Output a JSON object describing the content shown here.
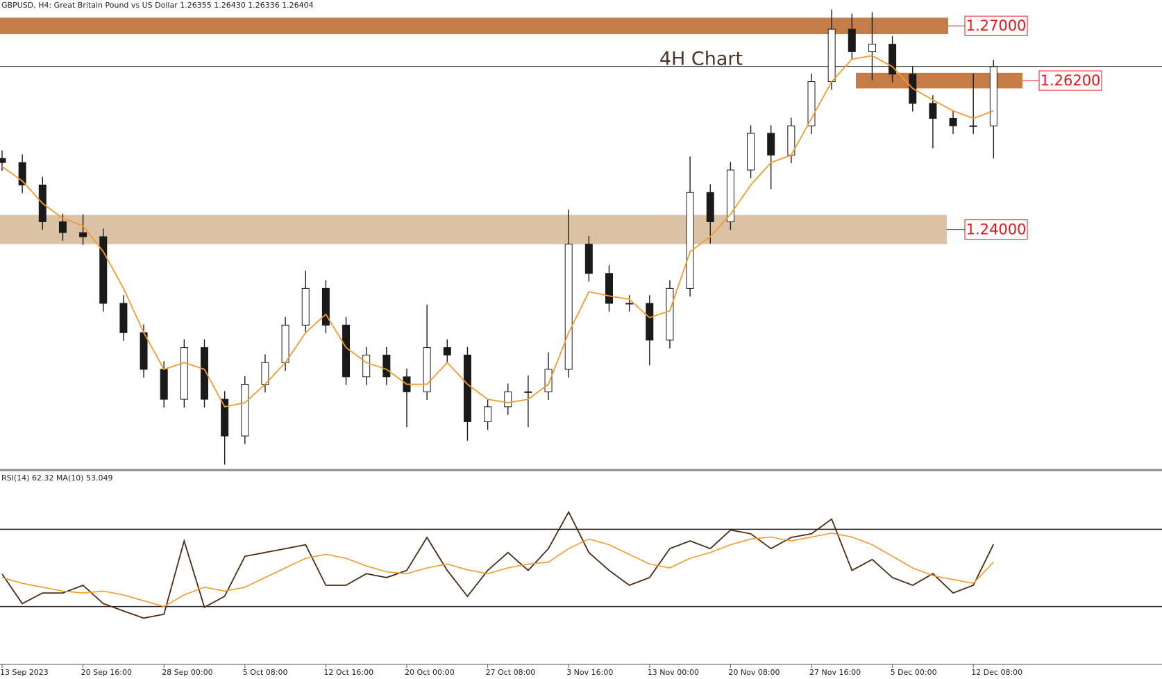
{
  "chart_data": [
    {
      "type": "candlestick",
      "header": "GBPUSD, H4:  Great Britain Pound vs US Dollar  1.26355 1.26430 1.26336 1.26404",
      "title": "4H Chart",
      "categories": [
        "13 Sep 2023",
        null,
        null,
        null,
        "20 Sep 16:00",
        null,
        null,
        null,
        "28 Sep 00:00",
        null,
        null,
        null,
        "5 Oct 08:00",
        null,
        null,
        null,
        "12 Oct 16:00",
        null,
        null,
        null,
        "20 Oct 00:00",
        null,
        null,
        null,
        "27 Oct 08:00",
        null,
        null,
        null,
        "3 Nov 16:00",
        null,
        null,
        null,
        "13 Nov 00:00",
        null,
        null,
        null,
        "20 Nov 08:00",
        null,
        null,
        null,
        "27 Nov 16:00",
        null,
        null,
        null,
        "5 Dec 00:00",
        null,
        null,
        null,
        "12 Dec 08:00",
        null
      ],
      "open": [
        1.2505,
        1.2499,
        1.2466,
        1.2412,
        1.2396,
        1.239,
        1.2292,
        1.2249,
        1.2195,
        1.2151,
        1.2227,
        1.2151,
        1.2097,
        1.2173,
        1.2205,
        1.226,
        1.2314,
        1.226,
        1.2184,
        1.2216,
        1.2184,
        1.2162,
        1.2227,
        1.2216,
        1.2118,
        1.214,
        1.2162,
        1.2162,
        1.2195,
        1.2379,
        1.2336,
        1.2292,
        1.2292,
        1.2238,
        1.2314,
        1.2455,
        1.2412,
        1.2488,
        1.2542,
        1.251,
        1.2553,
        1.2618,
        1.2695,
        1.2662,
        1.2673,
        1.2629,
        1.2586,
        1.2564,
        1.2553,
        1.2553
      ],
      "high": [
        1.2517,
        1.2511,
        1.2478,
        1.2424,
        1.2423,
        1.2402,
        1.2304,
        1.2261,
        1.2207,
        1.2239,
        1.2239,
        1.2163,
        1.2185,
        1.2217,
        1.2272,
        1.234,
        1.2326,
        1.2272,
        1.2228,
        1.2228,
        1.2196,
        1.229,
        1.2239,
        1.2228,
        1.2152,
        1.2174,
        1.2186,
        1.222,
        1.243,
        1.2391,
        1.2348,
        1.2304,
        1.2304,
        1.2326,
        1.2508,
        1.2467,
        1.25,
        1.2554,
        1.2554,
        1.2565,
        1.263,
        1.2724,
        1.2718,
        1.272,
        1.2685,
        1.2641,
        1.2598,
        1.2576,
        1.263,
        1.265
      ],
      "low": [
        1.2487,
        1.2454,
        1.24,
        1.2384,
        1.2378,
        1.228,
        1.2237,
        1.2183,
        1.2139,
        1.2139,
        1.2139,
        1.2055,
        1.2085,
        1.2161,
        1.2193,
        1.2248,
        1.2248,
        1.2172,
        1.2172,
        1.2172,
        1.211,
        1.215,
        1.2204,
        1.209,
        1.2106,
        1.2128,
        1.211,
        1.215,
        1.2183,
        1.2324,
        1.228,
        1.228,
        1.2201,
        1.2226,
        1.2302,
        1.238,
        1.24,
        1.2476,
        1.246,
        1.2498,
        1.2541,
        1.2606,
        1.265,
        1.262,
        1.2617,
        1.2574,
        1.252,
        1.2541,
        1.2541,
        1.2505
      ],
      "close": [
        1.2499,
        1.2466,
        1.2412,
        1.2396,
        1.239,
        1.2292,
        1.2249,
        1.2195,
        1.2151,
        1.2227,
        1.2151,
        1.2097,
        1.2173,
        1.2205,
        1.226,
        1.2314,
        1.226,
        1.2184,
        1.2216,
        1.2184,
        1.2162,
        1.2227,
        1.2216,
        1.2118,
        1.214,
        1.2162,
        1.2162,
        1.2195,
        1.2379,
        1.2336,
        1.2292,
        1.2292,
        1.2238,
        1.2314,
        1.2455,
        1.2412,
        1.2488,
        1.2542,
        1.251,
        1.2553,
        1.2618,
        1.2695,
        1.2662,
        1.2673,
        1.2629,
        1.2586,
        1.2564,
        1.2553,
        1.2553,
        1.264
      ],
      "ma": {
        "color": "#f39a2c",
        "values": [
          1.2493,
          1.2472,
          1.2439,
          1.2417,
          1.2406,
          1.2368,
          1.2314,
          1.2249,
          1.2195,
          1.2205,
          1.2195,
          1.214,
          1.2146,
          1.2173,
          1.2205,
          1.2249,
          1.2276,
          1.2227,
          1.2205,
          1.2195,
          1.2173,
          1.2173,
          1.2205,
          1.2173,
          1.2151,
          1.2146,
          1.2151,
          1.2173,
          1.2249,
          1.2309,
          1.2303,
          1.2298,
          1.2271,
          1.2281,
          1.2368,
          1.239,
          1.2423,
          1.2466,
          1.2499,
          1.251,
          1.2564,
          1.2618,
          1.2651,
          1.2656,
          1.264,
          1.2608,
          1.2591,
          1.2575,
          1.2564,
          1.2575
        ]
      },
      "up_color": "#ffffff",
      "down_color": "#1a1a1a",
      "ylim": [
        1.2048,
        1.2738
      ],
      "current_price": 1.26404,
      "zones": [
        {
          "label": "1.27000",
          "low": 1.2688,
          "high": 1.2712,
          "color": "#c67c47"
        },
        {
          "label": "1.26200",
          "low": 1.2608,
          "high": 1.2631,
          "color": "#c67c47"
        },
        {
          "label": "1.24000",
          "low": 1.2379,
          "high": 1.2422,
          "color": "#dcc2a4"
        }
      ]
    },
    {
      "type": "line",
      "label": "RSI(14) 62.32 MA(10) 53.049",
      "series": [
        {
          "color": "#4a2a12",
          "values": [
            46.8,
            31.5,
            37,
            37,
            41,
            31.5,
            27.7,
            24,
            26,
            64,
            29.6,
            35.3,
            56,
            58,
            60,
            62,
            41,
            41,
            47,
            45,
            48.7,
            65.8,
            48.7,
            35.3,
            48.7,
            58,
            48.7,
            60,
            79,
            58,
            48.7,
            41,
            45,
            60,
            64,
            60,
            69.6,
            67.7,
            60,
            65.8,
            67.7,
            75.3,
            48.7,
            54.4,
            45,
            41,
            47,
            37,
            41,
            62.32
          ]
        },
        {
          "color": "#f39a2c",
          "values": [
            45,
            42,
            40,
            38,
            37,
            38,
            36,
            33,
            30,
            36,
            40,
            38,
            40,
            45,
            50,
            55,
            57,
            55,
            51,
            48,
            47,
            50,
            52,
            49,
            47,
            50,
            52,
            53,
            60,
            65,
            62,
            57,
            52,
            50,
            55,
            58,
            62,
            65,
            66,
            64,
            66,
            68,
            66,
            62,
            56,
            50,
            46,
            44,
            42,
            53.049
          ]
        }
      ],
      "ylim": [
        0,
        100
      ],
      "levels": [
        30,
        70
      ]
    }
  ]
}
